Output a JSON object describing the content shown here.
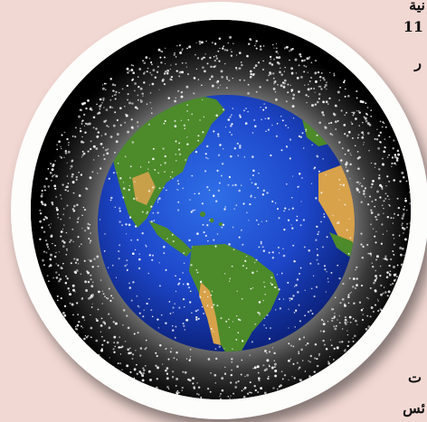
{
  "illustration": {
    "subject": "earth-with-orbital-debris",
    "colors": {
      "page_background": "#f2d8d3",
      "frame": "#fdfdfb",
      "space": "#000000",
      "ocean": "#1d46c9",
      "land": "#4d8a2a",
      "desert": "#d8a24a",
      "debris": "#ffffff"
    }
  },
  "text_fragments": {
    "top_right_1": "نية",
    "top_right_2": "11",
    "top_right_3": "ر",
    "bottom_right_1": "ت",
    "bottom_right_2": "ئس"
  }
}
